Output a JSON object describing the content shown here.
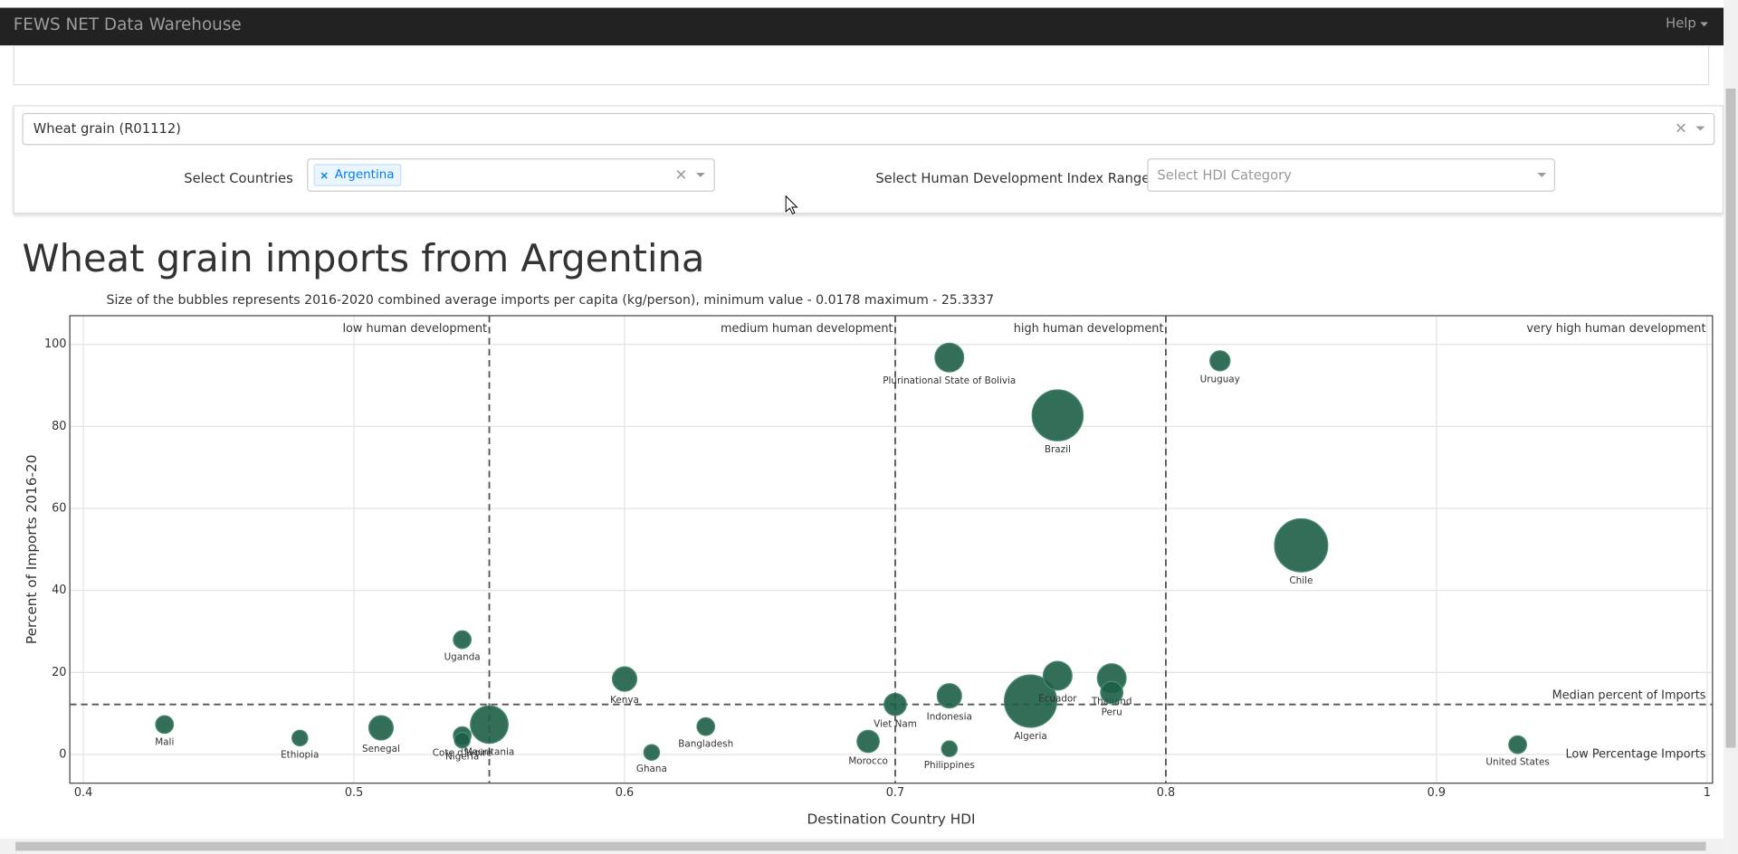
{
  "nav": {
    "title": "FEWS NET Data Warehouse",
    "help": "Help"
  },
  "filters": {
    "commodity": "Wheat grain (R01112)",
    "countries_label": "Select Countries",
    "countries": [
      "Argentina"
    ],
    "hdi_label": "Select Human Development Index Range",
    "hdi_placeholder": "Select HDI Category"
  },
  "chart_data": {
    "type": "bubble",
    "title": "Wheat grain imports from Argentina",
    "subtitle": "Size of the bubbles represents 2016-2020 combined average imports per capita (kg/person), minimum value - 0.0178 maximum - 25.3337",
    "xlabel": "Destination Country HDI",
    "ylabel": "Percent of Imports 2016-20",
    "color": "#1d5e47",
    "categories": [
      "Mali",
      "Ethiopia",
      "Senegal",
      "Cote d'Ivoire",
      "Nigeria",
      "Mauritania",
      "Uganda",
      "Kenya",
      "Ghana",
      "Bangladesh",
      "Morocco",
      "Viet Nam",
      "Indonesia",
      "Philippines",
      "Plurinational State of Bolivia",
      "Algeria",
      "Brazil",
      "Ecuador",
      "Thailand",
      "Peru",
      "Uruguay",
      "Chile",
      "United States"
    ],
    "x": [
      0.43,
      0.48,
      0.51,
      0.54,
      0.54,
      0.55,
      0.54,
      0.6,
      0.61,
      0.63,
      0.69,
      0.7,
      0.72,
      0.72,
      0.72,
      0.75,
      0.76,
      0.76,
      0.78,
      0.78,
      0.82,
      0.85,
      0.93
    ],
    "values": [
      7.3,
      4,
      6.5,
      4.6,
      3.5,
      7.3,
      28,
      18.4,
      0.5,
      6.8,
      3.2,
      12.2,
      14.3,
      1.4,
      96.8,
      13,
      82.7,
      19.2,
      18.6,
      15.1,
      96,
      51,
      2.4
    ],
    "sizes": [
      2.8,
      2.2,
      5.3,
      2.8,
      2.2,
      12.7,
      2.8,
      5.3,
      2.2,
      2.8,
      4.4,
      4.4,
      5.3,
      2.2,
      7.4,
      24.5,
      23.3,
      7.4,
      7.4,
      4.4,
      3.6,
      25.33,
      2.8
    ],
    "xlim": [
      0.395,
      1.002
    ],
    "ylim": [
      -7,
      107
    ],
    "xticks": [
      0.4,
      0.5,
      0.6,
      0.7,
      0.8,
      0.9,
      1
    ],
    "yticks": [
      0,
      20,
      40,
      60,
      80,
      100
    ],
    "grid": true,
    "hdi_thresholds": [
      {
        "value": 0.55,
        "label": "low human development"
      },
      {
        "value": 0.7,
        "label": "medium human development"
      },
      {
        "value": 0.8,
        "label": "high human development"
      }
    ],
    "top_right_label": "very high human development",
    "median": {
      "value": 12.2,
      "label": "Median percent of Imports"
    },
    "low_label": "Low Percentage Imports"
  }
}
